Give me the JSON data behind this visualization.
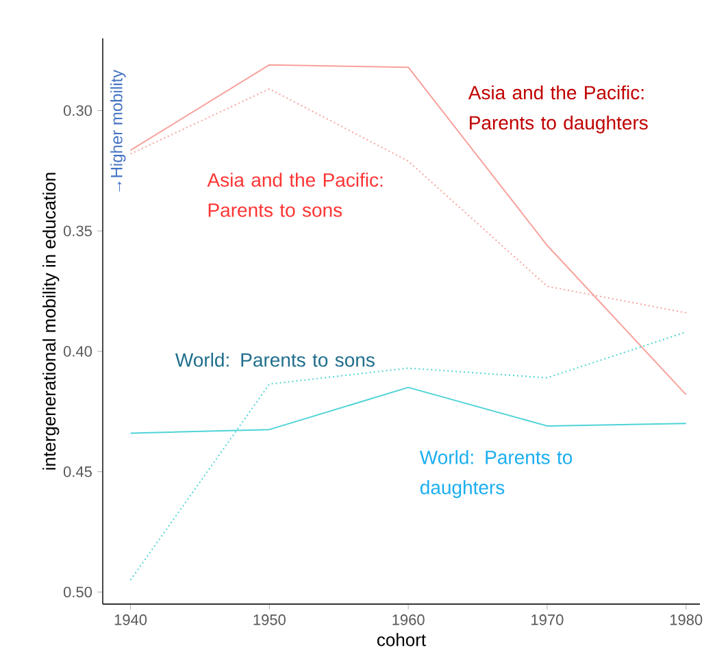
{
  "chart_data": {
    "type": "line",
    "xlabel": "cohort",
    "ylabel": "intergenerational mobility in education",
    "x": [
      1940,
      1950,
      1960,
      1970,
      1980
    ],
    "series": [
      {
        "name": "Asia and the Pacific: Parents to daughters",
        "color": "#f7a19b",
        "line_style": "solid",
        "values": [
          0.3165,
          0.281,
          0.282,
          0.356,
          0.418
        ]
      },
      {
        "name": "Asia and the Pacific: Parents to sons",
        "color": "#f7a19b",
        "line_style": "dotted",
        "values": [
          0.318,
          0.291,
          0.321,
          0.373,
          0.384
        ]
      },
      {
        "name": "World: Parents to sons",
        "color": "#4fd3d6",
        "line_style": "dotted",
        "values": [
          0.495,
          0.4136,
          0.407,
          0.411,
          0.392
        ]
      },
      {
        "name": "World: Parents to daughters",
        "color": "#4fd3d6",
        "line_style": "solid",
        "values": [
          0.434,
          0.4325,
          0.415,
          0.431,
          0.43
        ]
      }
    ],
    "xlim": [
      1938,
      1981
    ],
    "ylim": [
      0.505,
      0.27
    ],
    "xticks": [
      1940,
      1950,
      1960,
      1970,
      1980
    ],
    "yticks": [
      {
        "value": 0.3,
        "label": "0.30"
      },
      {
        "value": 0.35,
        "label": "0.35"
      },
      {
        "value": 0.4,
        "label": "0.40"
      },
      {
        "value": 0.45,
        "label": "0.45"
      },
      {
        "value": 0.5,
        "label": "0.50"
      }
    ],
    "annotations": [
      "→Higher mobility"
    ],
    "grid": false,
    "marker": "none"
  }
}
